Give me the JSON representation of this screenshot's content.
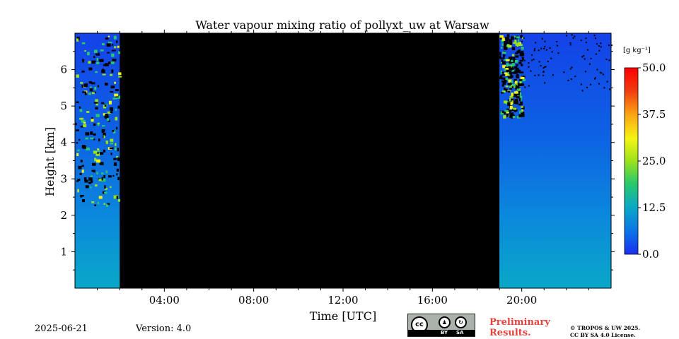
{
  "chart_data": {
    "type": "heatmap",
    "title": "Water vapour mixing ratio of pollyxt_uw at Warsaw",
    "xlabel": "Time [UTC]",
    "ylabel": "Height [km]",
    "x_ticks": [
      "04:00",
      "08:00",
      "12:00",
      "16:00",
      "20:00"
    ],
    "x_tick_values_h": [
      4,
      8,
      12,
      16,
      20
    ],
    "y_ticks": [
      "1",
      "2",
      "3",
      "4",
      "5",
      "6"
    ],
    "y_tick_values_km": [
      1,
      2,
      3,
      4,
      5,
      6
    ],
    "xlim_h": [
      0,
      24
    ],
    "ylim_km": [
      0,
      7
    ],
    "no_data_intervals_h": [
      [
        2.0,
        19.0
      ]
    ],
    "colorbar": {
      "label": "[g kg⁻¹]",
      "min": 0.0,
      "max": 50.0,
      "ticks": [
        "0.0",
        "12.5",
        "25.0",
        "37.5",
        "50.0"
      ],
      "tick_values": [
        0,
        12.5,
        25,
        37.5,
        50
      ],
      "colormap": [
        "#1a2ff0",
        "#0b72e6",
        "#0aa8c8",
        "#28c96b",
        "#9be21c",
        "#f5f514",
        "#fba414",
        "#f03a10",
        "#ff0000"
      ]
    }
  },
  "footer": {
    "date": "2025-06-21",
    "version": "Version: 4.0",
    "preliminary": [
      "Preliminary",
      "Results."
    ],
    "copyright": [
      "© TROPOS & UW 2025.",
      "CC BY SA 4.0 License."
    ],
    "license_badge": {
      "by": "BY",
      "sa": "SA"
    }
  }
}
